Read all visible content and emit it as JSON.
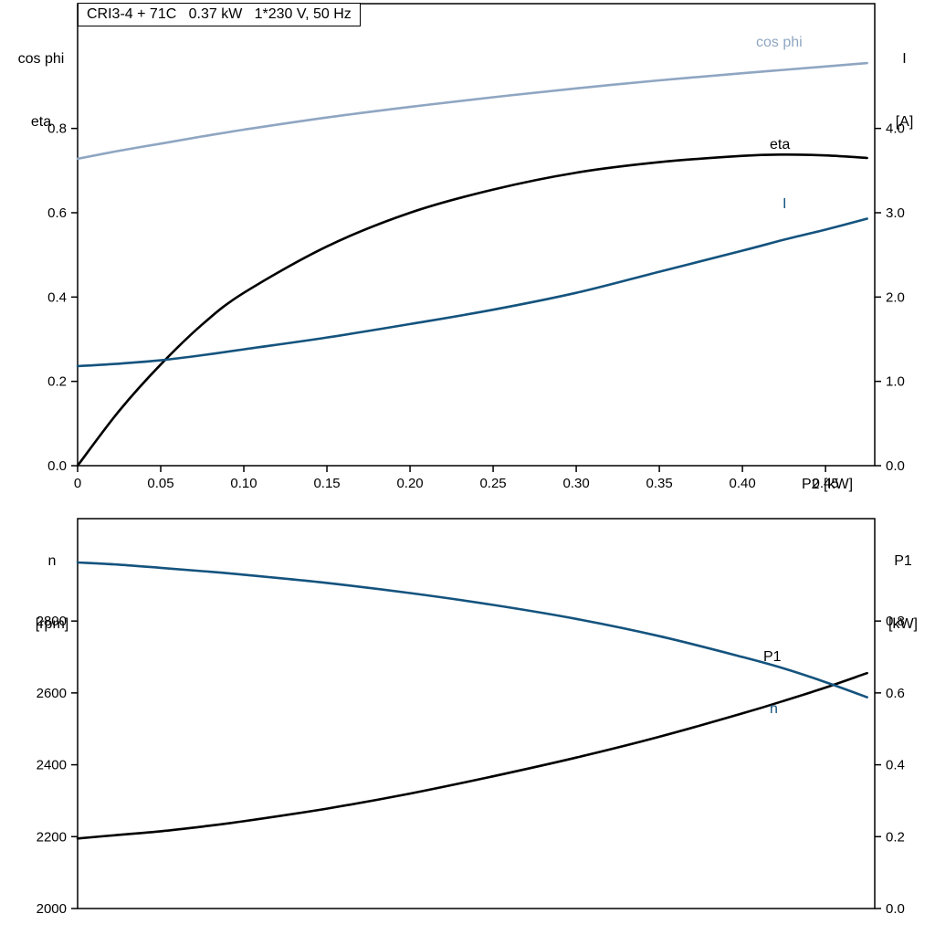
{
  "title_box": {
    "text": "CRI3-4 + 71C   0.37 kW   1*230 V, 50 Hz"
  },
  "colors": {
    "light_blue": "#8FA6C2",
    "dark_blue": "#14537E",
    "black": "#000000"
  },
  "chart_data": [
    {
      "type": "line",
      "title": "CRI3-4 + 71C   0.37 kW   1*230 V, 50 Hz",
      "x_label": "P2 [kW]",
      "x_range": [
        0,
        0.4796
      ],
      "x_ticks": [
        0,
        0.05,
        0.1,
        0.15,
        0.2,
        0.25,
        0.3,
        0.35,
        0.4,
        0.45
      ],
      "x_tick_labels": [
        "0",
        "0.05",
        "0.10",
        "0.15",
        "0.20",
        "0.25",
        "0.30",
        "0.35",
        "0.40",
        "0.45"
      ],
      "grid": false,
      "left_axis": {
        "title_lines": [
          "cos phi",
          "eta"
        ],
        "range": [
          0,
          1.096
        ],
        "ticks": [
          0,
          0.2,
          0.4,
          0.6,
          0.8
        ],
        "tick_labels": [
          "0.0",
          "0.2",
          "0.4",
          "0.6",
          "0.8"
        ]
      },
      "right_axis": {
        "title_lines": [
          "I",
          "[A]"
        ],
        "range": [
          0,
          5.48
        ],
        "ticks": [
          0,
          1,
          2,
          3,
          4
        ],
        "tick_labels": [
          "0.0",
          "1.0",
          "2.0",
          "3.0",
          "4.0"
        ]
      },
      "series": [
        {
          "name": "cos phi",
          "label": "cos phi",
          "axis": "left",
          "color": "#8FA6C2",
          "x": [
            0,
            0.025,
            0.05,
            0.075,
            0.1,
            0.15,
            0.2,
            0.25,
            0.3,
            0.35,
            0.4,
            0.425,
            0.45,
            0.475
          ],
          "y": [
            0.728,
            0.747,
            0.764,
            0.781,
            0.797,
            0.826,
            0.851,
            0.874,
            0.895,
            0.914,
            0.931,
            0.939,
            0.947,
            0.955
          ]
        },
        {
          "name": "eta",
          "label": "eta",
          "axis": "left",
          "color": "#000000",
          "x": [
            0,
            0.025,
            0.05,
            0.075,
            0.1,
            0.15,
            0.2,
            0.25,
            0.3,
            0.35,
            0.4,
            0.425,
            0.45,
            0.475
          ],
          "y": [
            0,
            0.13,
            0.24,
            0.335,
            0.41,
            0.52,
            0.6,
            0.655,
            0.695,
            0.72,
            0.735,
            0.738,
            0.736,
            0.73
          ]
        },
        {
          "name": "I",
          "label": "I",
          "axis": "right",
          "color": "#14537E",
          "x": [
            0,
            0.025,
            0.05,
            0.075,
            0.1,
            0.15,
            0.2,
            0.25,
            0.3,
            0.35,
            0.4,
            0.425,
            0.45,
            0.475
          ],
          "y": [
            1.18,
            1.21,
            1.25,
            1.31,
            1.38,
            1.52,
            1.68,
            1.85,
            2.05,
            2.3,
            2.55,
            2.68,
            2.8,
            2.93
          ]
        }
      ]
    },
    {
      "type": "line",
      "title": "",
      "x_label": "",
      "x_range": [
        0,
        0.4796
      ],
      "x_ticks": [],
      "x_tick_labels": [],
      "grid": false,
      "left_axis": {
        "title_lines": [
          "n",
          "[rpm]"
        ],
        "range": [
          2000,
          3085
        ],
        "ticks": [
          2000,
          2200,
          2400,
          2600,
          2800
        ],
        "tick_labels": [
          "2000",
          "2200",
          "2400",
          "2600",
          "2800"
        ]
      },
      "right_axis": {
        "title_lines": [
          "P1",
          "[kW]"
        ],
        "range": [
          0,
          1.085
        ],
        "ticks": [
          0,
          0.2,
          0.4,
          0.6,
          0.8
        ],
        "tick_labels": [
          "0.0",
          "0.2",
          "0.4",
          "0.6",
          "0.8"
        ]
      },
      "series": [
        {
          "name": "P1",
          "label": "P1",
          "axis": "right",
          "color": "#000000",
          "x": [
            0,
            0.025,
            0.05,
            0.075,
            0.1,
            0.15,
            0.2,
            0.25,
            0.3,
            0.35,
            0.4,
            0.425,
            0.45,
            0.475
          ],
          "y": [
            0.195,
            0.205,
            0.215,
            0.228,
            0.243,
            0.278,
            0.32,
            0.368,
            0.42,
            0.478,
            0.543,
            0.578,
            0.615,
            0.655
          ]
        },
        {
          "name": "n",
          "label": "n",
          "axis": "left",
          "color": "#14537E",
          "x": [
            0,
            0.025,
            0.05,
            0.075,
            0.1,
            0.15,
            0.2,
            0.25,
            0.3,
            0.35,
            0.4,
            0.425,
            0.45,
            0.475
          ],
          "y": [
            2963,
            2957,
            2948,
            2939,
            2929,
            2906,
            2878,
            2845,
            2806,
            2758,
            2700,
            2668,
            2630,
            2588
          ]
        }
      ]
    }
  ]
}
